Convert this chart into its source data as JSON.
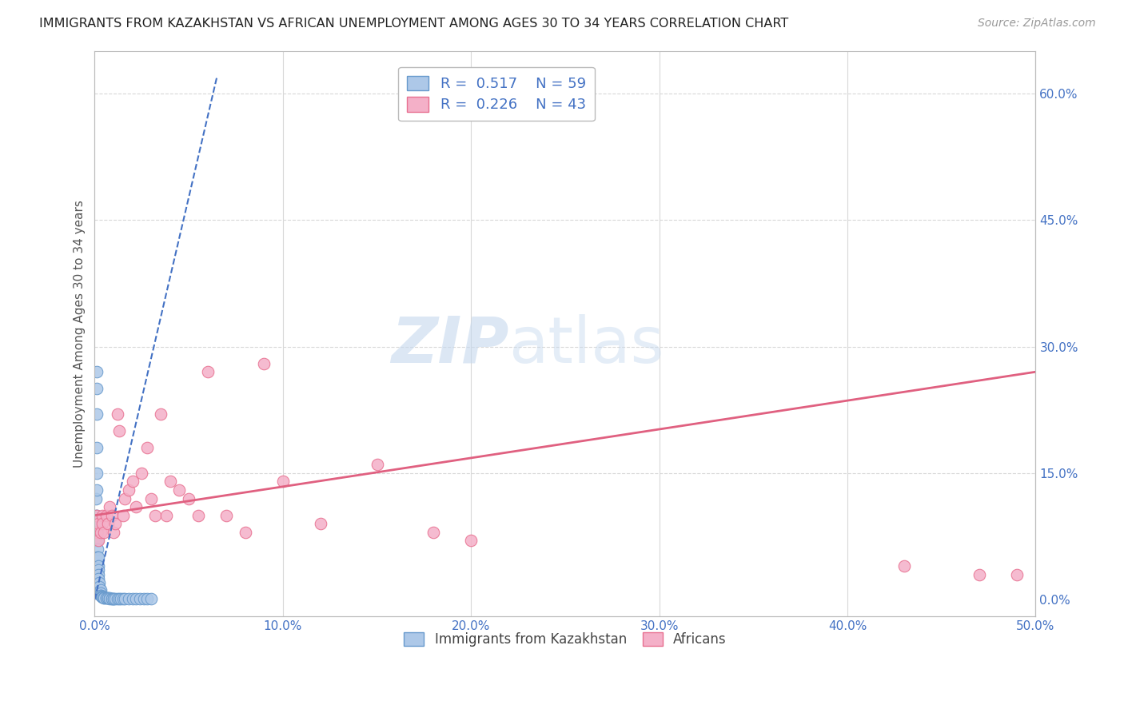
{
  "title": "IMMIGRANTS FROM KAZAKHSTAN VS AFRICAN UNEMPLOYMENT AMONG AGES 30 TO 34 YEARS CORRELATION CHART",
  "source": "Source: ZipAtlas.com",
  "ylabel": "Unemployment Among Ages 30 to 34 years",
  "xlim": [
    0.0,
    0.5
  ],
  "ylim": [
    -0.02,
    0.65
  ],
  "xticks": [
    0.0,
    0.1,
    0.2,
    0.3,
    0.4,
    0.5
  ],
  "xticklabels": [
    "0.0%",
    "10.0%",
    "20.0%",
    "30.0%",
    "40.0%",
    "50.0%"
  ],
  "yticks_right": [
    0.0,
    0.15,
    0.3,
    0.45,
    0.6
  ],
  "yticklabels_right": [
    "0.0%",
    "15.0%",
    "30.0%",
    "45.0%",
    "60.0%"
  ],
  "kaz_color": "#adc8e8",
  "afr_color": "#f4b0c8",
  "kaz_edge": "#6699cc",
  "afr_edge": "#e87090",
  "kaz_R": 0.517,
  "kaz_N": 59,
  "afr_R": 0.226,
  "afr_N": 43,
  "legend_label_kaz": "Immigrants from Kazakhstan",
  "legend_label_afr": "Africans",
  "kaz_line_color": "#4472c4",
  "afr_line_color": "#e06080",
  "background_color": "#ffffff",
  "grid_color": "#d8d8d8",
  "kaz_scatter_x": [
    0.0003,
    0.0005,
    0.0005,
    0.0007,
    0.0008,
    0.0008,
    0.001,
    0.001,
    0.001,
    0.001,
    0.001,
    0.0012,
    0.0012,
    0.0013,
    0.0015,
    0.0015,
    0.0015,
    0.002,
    0.002,
    0.002,
    0.002,
    0.002,
    0.0022,
    0.0025,
    0.0025,
    0.003,
    0.003,
    0.003,
    0.0032,
    0.0035,
    0.004,
    0.004,
    0.004,
    0.005,
    0.005,
    0.005,
    0.006,
    0.006,
    0.007,
    0.007,
    0.008,
    0.008,
    0.009,
    0.009,
    0.01,
    0.01,
    0.011,
    0.012,
    0.013,
    0.014,
    0.015,
    0.016,
    0.018,
    0.02,
    0.022,
    0.024,
    0.026,
    0.028,
    0.03
  ],
  "kaz_scatter_y": [
    0.05,
    0.07,
    0.09,
    0.12,
    0.1,
    0.08,
    0.27,
    0.25,
    0.22,
    0.18,
    0.15,
    0.13,
    0.1,
    0.08,
    0.07,
    0.06,
    0.05,
    0.05,
    0.04,
    0.035,
    0.03,
    0.025,
    0.02,
    0.015,
    0.01,
    0.012,
    0.008,
    0.005,
    0.005,
    0.004,
    0.004,
    0.003,
    0.003,
    0.003,
    0.002,
    0.002,
    0.002,
    0.002,
    0.002,
    0.002,
    0.002,
    0.001,
    0.001,
    0.001,
    0.001,
    0.001,
    0.001,
    0.001,
    0.001,
    0.001,
    0.001,
    0.001,
    0.001,
    0.001,
    0.001,
    0.001,
    0.001,
    0.001,
    0.001
  ],
  "afr_scatter_x": [
    0.001,
    0.001,
    0.002,
    0.002,
    0.003,
    0.004,
    0.004,
    0.005,
    0.006,
    0.007,
    0.008,
    0.009,
    0.01,
    0.011,
    0.012,
    0.013,
    0.015,
    0.016,
    0.018,
    0.02,
    0.022,
    0.025,
    0.028,
    0.03,
    0.032,
    0.035,
    0.038,
    0.04,
    0.045,
    0.05,
    0.055,
    0.06,
    0.07,
    0.08,
    0.09,
    0.1,
    0.12,
    0.15,
    0.18,
    0.2,
    0.43,
    0.47,
    0.49
  ],
  "afr_scatter_y": [
    0.08,
    0.1,
    0.07,
    0.09,
    0.08,
    0.1,
    0.09,
    0.08,
    0.1,
    0.09,
    0.11,
    0.1,
    0.08,
    0.09,
    0.22,
    0.2,
    0.1,
    0.12,
    0.13,
    0.14,
    0.11,
    0.15,
    0.18,
    0.12,
    0.1,
    0.22,
    0.1,
    0.14,
    0.13,
    0.12,
    0.1,
    0.27,
    0.1,
    0.08,
    0.28,
    0.14,
    0.09,
    0.16,
    0.08,
    0.07,
    0.04,
    0.03,
    0.03
  ],
  "kaz_line_x": [
    0.0,
    0.065
  ],
  "kaz_line_y": [
    0.0,
    0.62
  ],
  "afr_line_x": [
    0.0,
    0.5
  ],
  "afr_line_y": [
    0.1,
    0.27
  ]
}
